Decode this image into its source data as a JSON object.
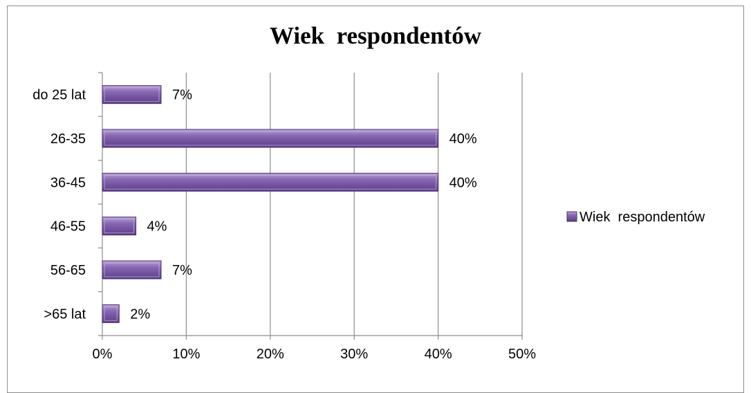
{
  "chart_data": {
    "type": "bar",
    "orientation": "horizontal",
    "title": "Wiek  respondentów",
    "categories": [
      "do 25 lat",
      "26-35",
      "36-45",
      "46-55",
      "56-65",
      ">65 lat"
    ],
    "series": [
      {
        "name": "Wiek  respondentów",
        "values": [
          7,
          40,
          40,
          4,
          7,
          2
        ],
        "labels": [
          "7%",
          "40%",
          "40%",
          "4%",
          "7%",
          "2%"
        ],
        "color": "#7f5ca8"
      }
    ],
    "xlim": [
      0,
      50
    ],
    "xticks": [
      0,
      10,
      20,
      30,
      40,
      50
    ],
    "xtick_labels": [
      "0%",
      "10%",
      "20%",
      "30%",
      "40%",
      "50%"
    ],
    "grid": "vertical",
    "legend": "right"
  }
}
